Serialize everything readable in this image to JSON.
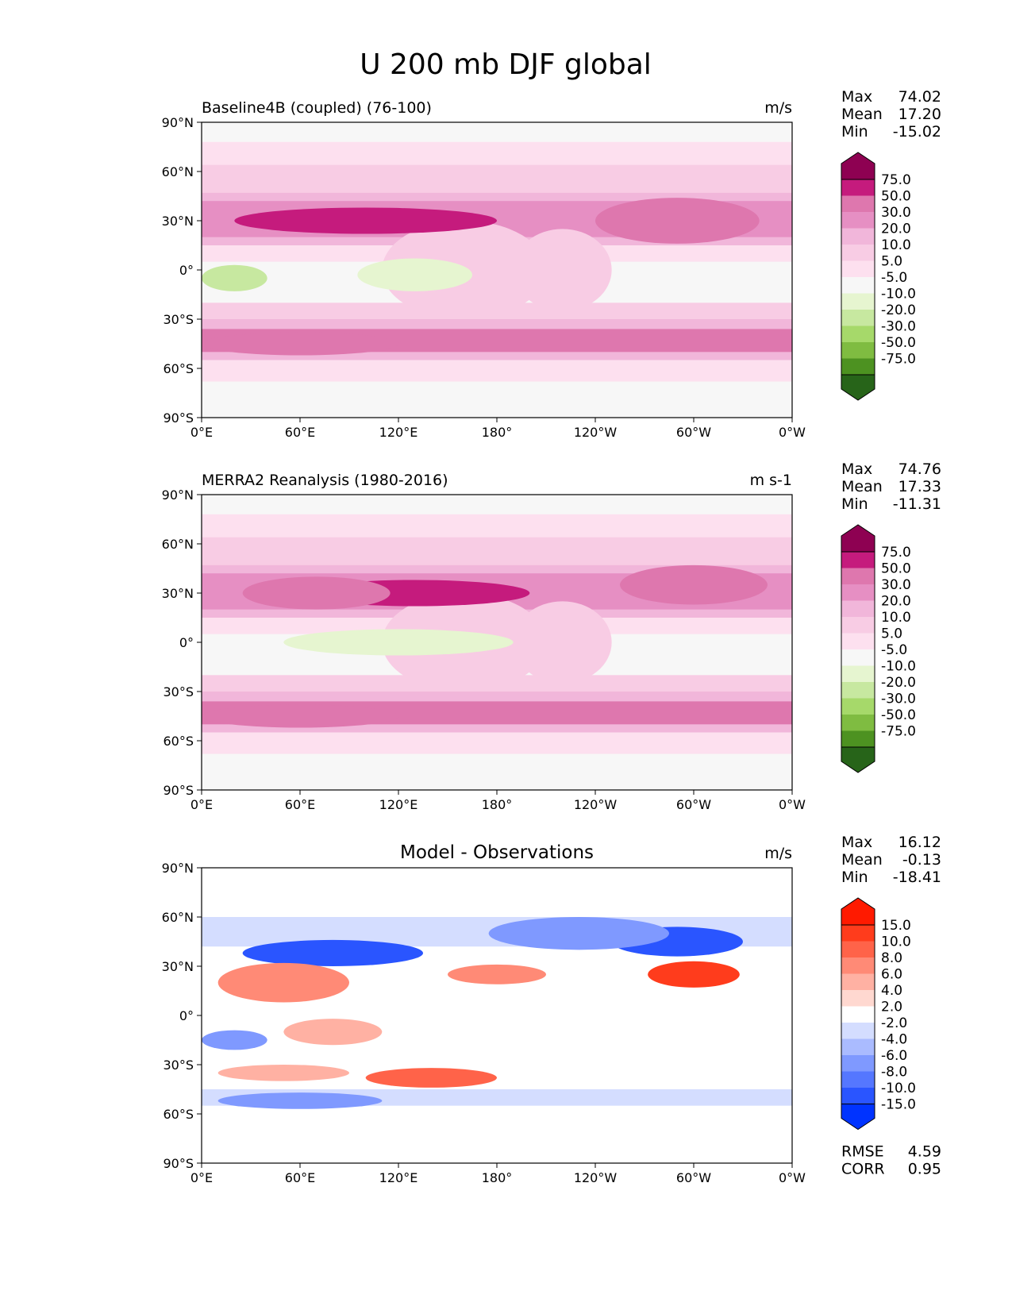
{
  "figure_title": "U 200 mb DJF global",
  "colors": {
    "pink_levels": [
      "#276419",
      "#4d9221",
      "#7fbc41",
      "#a6d96a",
      "#c7e8a0",
      "#e6f5d0",
      "#f7f7f7",
      "#fde0ef",
      "#f8cce4",
      "#f1b6da",
      "#e68fc3",
      "#de77ae",
      "#c51b7d",
      "#8e0152"
    ],
    "diff_levels": [
      "#0033ff",
      "#2a55ff",
      "#5577ff",
      "#7f99ff",
      "#aabbff",
      "#d4ddff",
      "#ffffff",
      "#ffd8d0",
      "#ffb1a3",
      "#ff8a76",
      "#ff6349",
      "#ff3c1c",
      "#ff1a00"
    ]
  },
  "chart_data": [
    {
      "type": "heatmap",
      "title": "Baseline4B (coupled) (76-100)",
      "units": "m/s",
      "stats": {
        "max": {
          "label": "Max",
          "value": "74.02"
        },
        "mean": {
          "label": "Mean",
          "value": "17.20"
        },
        "min": {
          "label": "Min",
          "value": "-15.02"
        }
      },
      "colorbar_labels": [
        "75.0",
        "50.0",
        "30.0",
        "20.0",
        "10.0",
        "5.0",
        "-5.0",
        "-10.0",
        "-20.0",
        "-30.0",
        "-50.0",
        "-75.0"
      ],
      "xlim": [
        0,
        360
      ],
      "ylim": [
        -90,
        90
      ],
      "xticks": [
        "0°E",
        "60°E",
        "120°E",
        "180°",
        "120°W",
        "60°W",
        "0°W"
      ],
      "yticks": [
        "90°N",
        "60°N",
        "30°N",
        "0°",
        "30°S",
        "60°S",
        "90°S"
      ]
    },
    {
      "type": "heatmap",
      "title": "MERRA2 Reanalysis (1980-2016)",
      "units": "m s-1",
      "stats": {
        "max": {
          "label": "Max",
          "value": "74.76"
        },
        "mean": {
          "label": "Mean",
          "value": "17.33"
        },
        "min": {
          "label": "Min",
          "value": "-11.31"
        }
      },
      "colorbar_labels": [
        "75.0",
        "50.0",
        "30.0",
        "20.0",
        "10.0",
        "5.0",
        "-5.0",
        "-10.0",
        "-20.0",
        "-30.0",
        "-50.0",
        "-75.0"
      ],
      "xlim": [
        0,
        360
      ],
      "ylim": [
        -90,
        90
      ],
      "xticks": [
        "0°E",
        "60°E",
        "120°E",
        "180°",
        "120°W",
        "60°W",
        "0°W"
      ],
      "yticks": [
        "90°N",
        "60°N",
        "30°N",
        "0°",
        "30°S",
        "60°S",
        "90°S"
      ]
    },
    {
      "type": "heatmap",
      "title": "Model - Observations",
      "units": "m/s",
      "stats": {
        "max": {
          "label": "Max",
          "value": "16.12"
        },
        "mean": {
          "label": "Mean",
          "value": "-0.13"
        },
        "min": {
          "label": "Min",
          "value": "-18.41"
        }
      },
      "colorbar_labels": [
        "15.0",
        "10.0",
        "8.0",
        "6.0",
        "4.0",
        "2.0",
        "-2.0",
        "-4.0",
        "-6.0",
        "-8.0",
        "-10.0",
        "-15.0"
      ],
      "metrics": {
        "rmse": {
          "label": "RMSE",
          "value": "4.59"
        },
        "corr": {
          "label": "CORR",
          "value": "0.95"
        }
      },
      "xlim": [
        0,
        360
      ],
      "ylim": [
        -90,
        90
      ],
      "xticks": [
        "0°E",
        "60°E",
        "120°E",
        "180°",
        "120°W",
        "60°W",
        "0°W"
      ],
      "yticks": [
        "90°N",
        "60°N",
        "30°N",
        "0°",
        "30°S",
        "60°S",
        "90°S"
      ]
    }
  ]
}
